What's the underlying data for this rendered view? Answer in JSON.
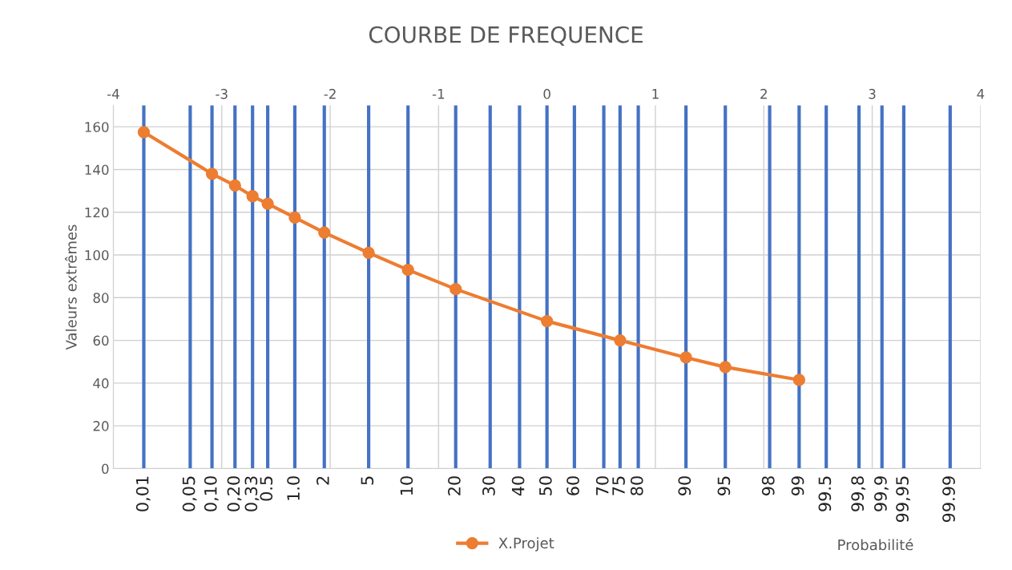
{
  "chart_data": {
    "type": "line",
    "title": "COURBE DE FREQUENCE",
    "ylabel": "Valeurs extrêmes",
    "xlabel": "Probabilité",
    "xlim": [
      -4,
      4
    ],
    "ylim": [
      0,
      170
    ],
    "yticks": [
      0,
      20,
      40,
      60,
      80,
      100,
      120,
      140,
      160
    ],
    "xticks": [
      -4,
      -3,
      -2,
      -1,
      0,
      1,
      2,
      3,
      4
    ],
    "ref_lines": [
      {
        "axis": "x",
        "value": -3.719,
        "color": "#4472c4"
      },
      {
        "axis": "x",
        "value": -3.291,
        "color": "#4472c4"
      },
      {
        "axis": "x",
        "value": -3.09,
        "color": "#4472c4"
      },
      {
        "axis": "x",
        "value": -2.878,
        "color": "#4472c4"
      },
      {
        "axis": "x",
        "value": -2.716,
        "color": "#4472c4"
      },
      {
        "axis": "x",
        "value": -2.576,
        "color": "#4472c4"
      },
      {
        "axis": "x",
        "value": -2.326,
        "color": "#4472c4"
      },
      {
        "axis": "x",
        "value": -2.054,
        "color": "#4472c4"
      },
      {
        "axis": "x",
        "value": -1.645,
        "color": "#4472c4"
      },
      {
        "axis": "x",
        "value": -1.282,
        "color": "#4472c4"
      },
      {
        "axis": "x",
        "value": -0.842,
        "color": "#4472c4"
      },
      {
        "axis": "x",
        "value": -0.524,
        "color": "#4472c4"
      },
      {
        "axis": "x",
        "value": -0.253,
        "color": "#4472c4"
      },
      {
        "axis": "x",
        "value": 0,
        "color": "#4472c4"
      },
      {
        "axis": "x",
        "value": 0.253,
        "color": "#4472c4"
      },
      {
        "axis": "x",
        "value": 0.524,
        "color": "#4472c4"
      },
      {
        "axis": "x",
        "value": 0.674,
        "color": "#4472c4"
      },
      {
        "axis": "x",
        "value": 0.842,
        "color": "#4472c4"
      },
      {
        "axis": "x",
        "value": 1.282,
        "color": "#4472c4"
      },
      {
        "axis": "x",
        "value": 1.645,
        "color": "#4472c4"
      },
      {
        "axis": "x",
        "value": 2.054,
        "color": "#4472c4"
      },
      {
        "axis": "x",
        "value": 2.326,
        "color": "#4472c4"
      },
      {
        "axis": "x",
        "value": 2.576,
        "color": "#4472c4"
      },
      {
        "axis": "x",
        "value": 2.878,
        "color": "#4472c4"
      },
      {
        "axis": "x",
        "value": 3.09,
        "color": "#4472c4"
      },
      {
        "axis": "x",
        "value": 3.291,
        "color": "#4472c4"
      },
      {
        "axis": "x",
        "value": 3.719,
        "color": "#4472c4"
      }
    ],
    "annotations": [
      "0,01",
      "0,05",
      "0,10",
      "0,20",
      "0,33",
      "0.5",
      "1.0",
      "2",
      "5",
      "10",
      "20",
      "30",
      "40",
      "50",
      "60",
      "70",
      "75",
      "80",
      "90",
      "95",
      "98",
      "99",
      "99.5",
      "99,8",
      "99,9",
      "99,95",
      "99.99"
    ],
    "series": [
      {
        "name": "X.Projet",
        "color": "#ed7d31",
        "x": [
          -3.719,
          -3.09,
          -2.878,
          -2.716,
          -2.576,
          -2.326,
          -2.054,
          -1.645,
          -1.282,
          -0.842,
          0,
          0.674,
          1.282,
          1.645,
          2.326
        ],
        "values": [
          157.5,
          138,
          132.5,
          127.5,
          124,
          117.5,
          110.5,
          101,
          93,
          84,
          69,
          60,
          52,
          47.5,
          41.5
        ]
      }
    ],
    "marker": "circle",
    "line_style": "solid",
    "grid": true,
    "legend": "bottom"
  }
}
